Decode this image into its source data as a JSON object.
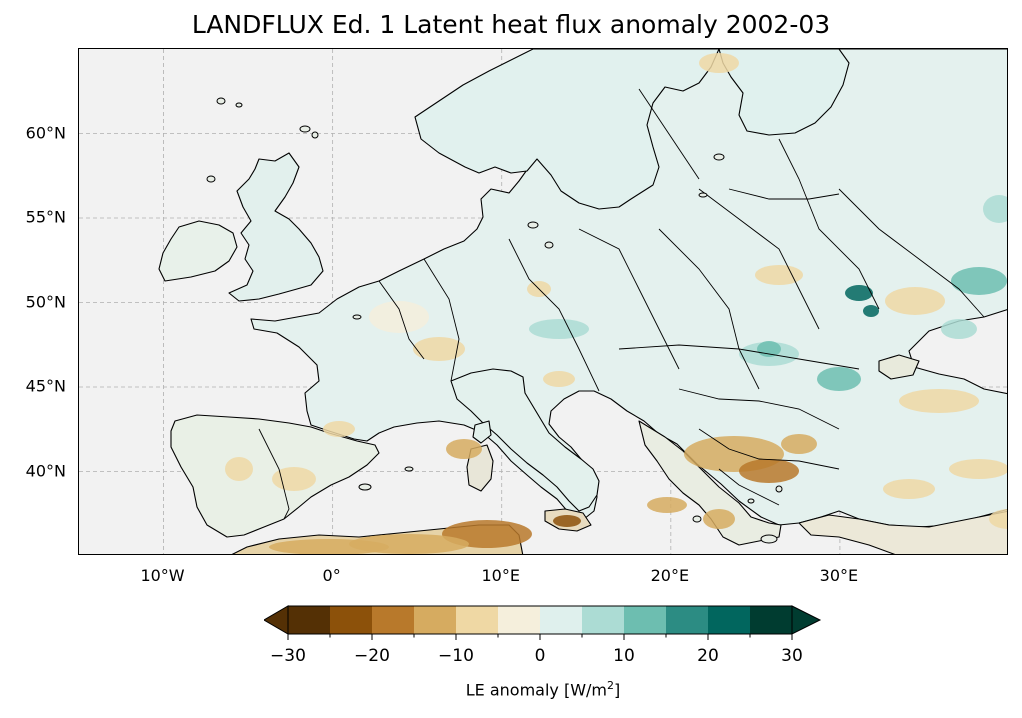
{
  "title": "LANDFLUX Ed. 1 Latent heat flux anomaly 2002-03",
  "map": {
    "extent": {
      "lon": [
        -15,
        40
      ],
      "lat": [
        35,
        65
      ]
    },
    "lat_ticks": [
      {
        "value": 40,
        "label": "40°N"
      },
      {
        "value": 45,
        "label": "45°N"
      },
      {
        "value": 50,
        "label": "50°N"
      },
      {
        "value": 55,
        "label": "55°N"
      },
      {
        "value": 60,
        "label": "60°N"
      }
    ],
    "lon_ticks": [
      {
        "value": -10,
        "label": "10°W"
      },
      {
        "value": 0,
        "label": "0°"
      },
      {
        "value": 10,
        "label": "10°E"
      },
      {
        "value": 20,
        "label": "20°E"
      },
      {
        "value": 30,
        "label": "30°E"
      }
    ],
    "ocean_color": "#f2f2f2",
    "gridlines": true
  },
  "colorbar": {
    "label_main": "LE anomaly [W/m",
    "label_sup": "2",
    "label_end": "]",
    "range": [
      -30,
      30
    ],
    "step": 5,
    "extend": "both",
    "colors": [
      "#543005",
      "#8c510a",
      "#b8792b",
      "#d6ab60",
      "#efd8a4",
      "#f5efdc",
      "#dff0ed",
      "#acdcd4",
      "#6dbeb0",
      "#2c8c83",
      "#01665e",
      "#003c30"
    ],
    "tick_labels": [
      {
        "value": -30,
        "label": "−30"
      },
      {
        "value": -20,
        "label": "−20"
      },
      {
        "value": -10,
        "label": "−10"
      },
      {
        "value": 0,
        "label": "0"
      },
      {
        "value": 10,
        "label": "10"
      },
      {
        "value": 20,
        "label": "20"
      },
      {
        "value": 30,
        "label": "30"
      }
    ]
  }
}
